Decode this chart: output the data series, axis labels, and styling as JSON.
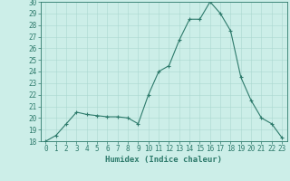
{
  "x": [
    0,
    1,
    2,
    3,
    4,
    5,
    6,
    7,
    8,
    9,
    10,
    11,
    12,
    13,
    14,
    15,
    16,
    17,
    18,
    19,
    20,
    21,
    22,
    23
  ],
  "y": [
    18,
    18.5,
    19.5,
    20.5,
    20.3,
    20.2,
    20.1,
    20.1,
    20.0,
    19.5,
    22.0,
    24.0,
    24.5,
    26.7,
    28.5,
    28.5,
    30.0,
    29.0,
    27.5,
    23.5,
    21.5,
    20.0,
    19.5,
    18.3
  ],
  "line_color": "#2d7a6b",
  "marker": "+",
  "bg_color": "#cceee8",
  "grid_color": "#aad8d0",
  "xlabel": "Humidex (Indice chaleur)",
  "ylim": [
    18,
    30
  ],
  "xlim_min": -0.5,
  "xlim_max": 23.5,
  "yticks": [
    18,
    19,
    20,
    21,
    22,
    23,
    24,
    25,
    26,
    27,
    28,
    29,
    30
  ],
  "xticks": [
    0,
    1,
    2,
    3,
    4,
    5,
    6,
    7,
    8,
    9,
    10,
    11,
    12,
    13,
    14,
    15,
    16,
    17,
    18,
    19,
    20,
    21,
    22,
    23
  ],
  "tick_color": "#2d7a6b",
  "label_fontsize": 5.5,
  "xlabel_fontsize": 6.5,
  "axis_color": "#2d7a6b",
  "linewidth": 0.8,
  "markersize": 3,
  "markeredgewidth": 0.8
}
